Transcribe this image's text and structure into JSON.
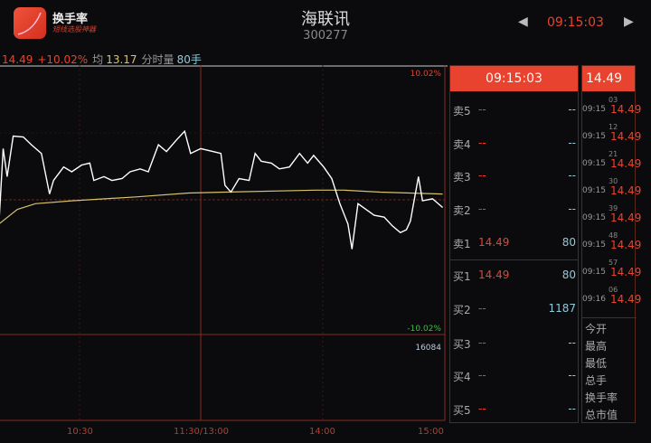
{
  "app": {
    "name": "换手率",
    "subtitle": "短线选股神器",
    "logo_color": "#e8432e"
  },
  "stock": {
    "name": "海联讯",
    "code": "300277"
  },
  "nav": {
    "prev_icon": "triangle-left-icon",
    "time": "09:15:03",
    "next_icon": "triangle-right-icon"
  },
  "info": {
    "price": "14.49",
    "change": "+10.02%",
    "avg_label": "均",
    "avg": "13.17",
    "vol_label": "分时量",
    "vol": "80手"
  },
  "colors": {
    "up": "#e8432e",
    "down": "#3fbf3f",
    "price_line": "#ffffff",
    "avg_line": "#d6c36a",
    "volume_text": "#8ecbdc"
  },
  "chart_data": {
    "type": "line",
    "pre_close": 13.17,
    "ylim_pct": [
      -10.02,
      10.02
    ],
    "top_label": "10.02%",
    "bottom_label": "-10.02%",
    "volume_max_label": "16084",
    "x_ticks": [
      "10:30",
      "11:30/13:00",
      "14:00",
      "15:00"
    ],
    "series": [
      {
        "key": "price",
        "points": [
          [
            "09:50",
            12.95
          ],
          [
            "09:52",
            13.7
          ],
          [
            "09:54",
            13.41
          ],
          [
            "09:57",
            13.83
          ],
          [
            "10:02",
            13.82
          ],
          [
            "10:06",
            13.74
          ],
          [
            "10:11",
            13.65
          ],
          [
            "10:15",
            13.23
          ],
          [
            "10:17",
            13.37
          ],
          [
            "10:22",
            13.51
          ],
          [
            "10:26",
            13.46
          ],
          [
            "10:31",
            13.53
          ],
          [
            "10:35",
            13.55
          ],
          [
            "10:37",
            13.37
          ],
          [
            "10:42",
            13.41
          ],
          [
            "10:46",
            13.37
          ],
          [
            "10:51",
            13.39
          ],
          [
            "10:55",
            13.46
          ],
          [
            "11:00",
            13.49
          ],
          [
            "11:04",
            13.46
          ],
          [
            "11:09",
            13.74
          ],
          [
            "11:13",
            13.67
          ],
          [
            "11:18",
            13.79
          ],
          [
            "11:22",
            13.88
          ],
          [
            "11:25",
            13.65
          ],
          [
            "11:30",
            13.7
          ],
          [
            "13:06",
            13.67
          ],
          [
            "13:10",
            13.65
          ],
          [
            "13:12",
            13.32
          ],
          [
            "13:15",
            13.25
          ],
          [
            "13:19",
            13.39
          ],
          [
            "13:24",
            13.37
          ],
          [
            "13:27",
            13.65
          ],
          [
            "13:30",
            13.57
          ],
          [
            "13:35",
            13.55
          ],
          [
            "13:39",
            13.49
          ],
          [
            "13:44",
            13.51
          ],
          [
            "13:49",
            13.65
          ],
          [
            "13:53",
            13.55
          ],
          [
            "13:56",
            13.63
          ],
          [
            "14:01",
            13.51
          ],
          [
            "14:05",
            13.39
          ],
          [
            "14:09",
            13.13
          ],
          [
            "14:13",
            12.92
          ],
          [
            "14:15",
            12.66
          ],
          [
            "14:18",
            13.13
          ],
          [
            "14:22",
            13.07
          ],
          [
            "14:26",
            13.01
          ],
          [
            "14:31",
            12.99
          ],
          [
            "14:35",
            12.9
          ],
          [
            "14:39",
            12.83
          ],
          [
            "14:42",
            12.86
          ],
          [
            "14:44",
            12.95
          ],
          [
            "14:48",
            13.41
          ],
          [
            "14:50",
            13.16
          ],
          [
            "14:55",
            13.18
          ],
          [
            "15:00",
            13.09
          ]
        ]
      },
      {
        "key": "avg",
        "points": [
          [
            "09:50",
            12.92
          ],
          [
            "09:59",
            13.07
          ],
          [
            "10:08",
            13.13
          ],
          [
            "10:26",
            13.16
          ],
          [
            "10:58",
            13.2
          ],
          [
            "11:24",
            13.24
          ],
          [
            "13:12",
            13.25
          ],
          [
            "13:57",
            13.27
          ],
          [
            "14:11",
            13.27
          ],
          [
            "14:29",
            13.25
          ],
          [
            "15:00",
            13.23
          ]
        ]
      }
    ]
  },
  "order_book": {
    "time": "09:15:03",
    "asks": [
      {
        "label": "卖5",
        "price": "--",
        "vol": "--"
      },
      {
        "label": "卖4",
        "price": "--",
        "vol": "--"
      },
      {
        "label": "卖3",
        "price": "--",
        "vol": "--"
      },
      {
        "label": "卖2",
        "price": "--",
        "vol": "--"
      },
      {
        "label": "卖1",
        "price": "14.49",
        "vol": "80"
      }
    ],
    "bids": [
      {
        "label": "买1",
        "price": "14.49",
        "vol": "80"
      },
      {
        "label": "买2",
        "price": "--",
        "vol": "1187"
      },
      {
        "label": "买3",
        "price": "--",
        "vol": "--"
      },
      {
        "label": "买4",
        "price": "--",
        "vol": "--"
      },
      {
        "label": "买5",
        "price": "--",
        "vol": "--"
      }
    ]
  },
  "ticks": {
    "header": "14.49",
    "rows": [
      {
        "sec": "03",
        "time": "09:15",
        "price": "14.49"
      },
      {
        "sec": "12",
        "time": "09:15",
        "price": "14.49"
      },
      {
        "sec": "21",
        "time": "09:15",
        "price": "14.49"
      },
      {
        "sec": "30",
        "time": "09:15",
        "price": "14.49"
      },
      {
        "sec": "39",
        "time": "09:15",
        "price": "14.49"
      },
      {
        "sec": "48",
        "time": "09:15",
        "price": "14.49"
      },
      {
        "sec": "57",
        "time": "09:15",
        "price": "14.49"
      },
      {
        "sec": "06",
        "time": "09:16",
        "price": "14.49"
      }
    ],
    "stats": [
      "今开",
      "最高",
      "最低",
      "总手",
      "换手率",
      "总市值"
    ]
  }
}
